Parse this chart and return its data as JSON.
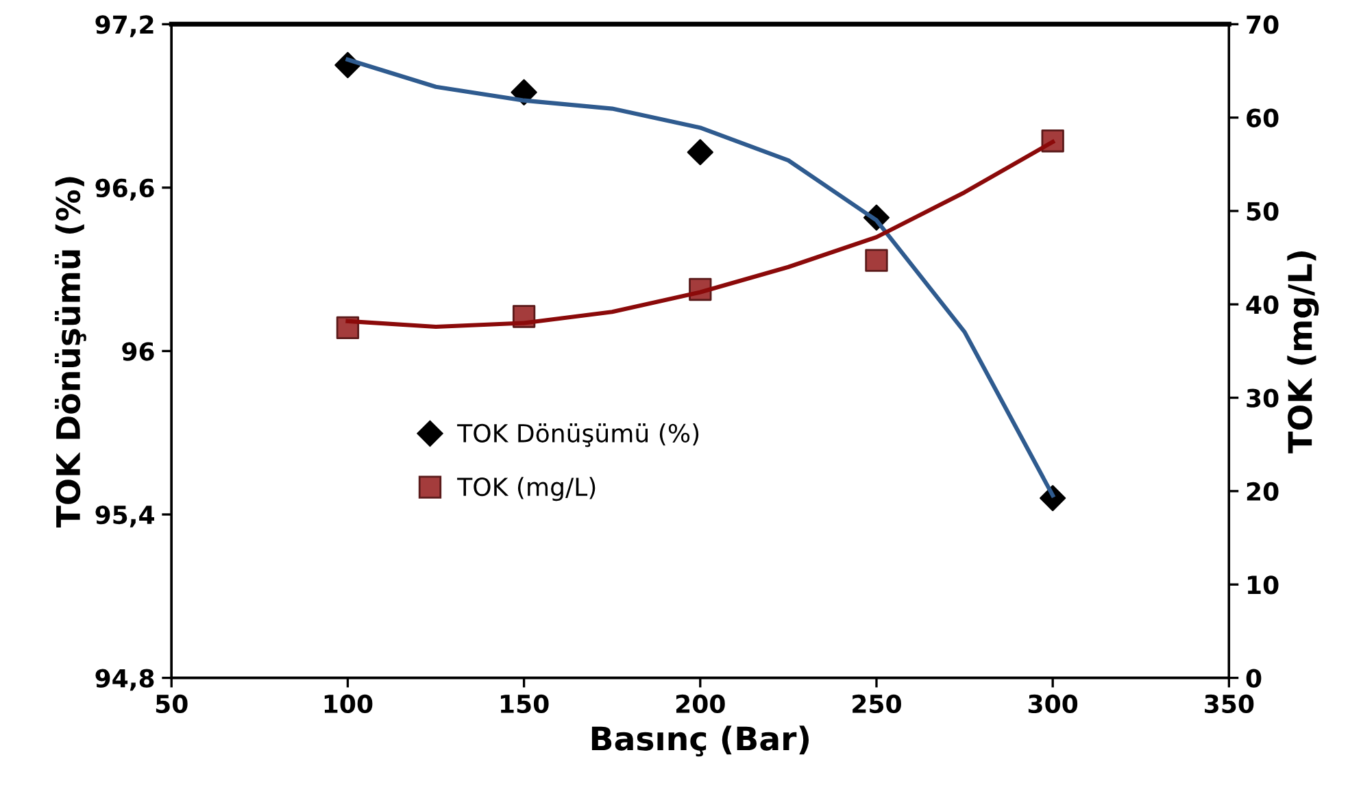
{
  "chart_data": {
    "type": "scatter",
    "xlabel": "Basınç (Bar)",
    "ylabel": "TOK Dönüşümü (%)",
    "y2label": "TOK (mg/L)",
    "xlim": [
      50,
      350
    ],
    "xticks": [
      50,
      100,
      150,
      200,
      250,
      300,
      350
    ],
    "ylim": [
      94.8,
      97.2
    ],
    "yticks": [
      {
        "value": 94.8,
        "label": "94,8"
      },
      {
        "value": 95.4,
        "label": "95,4"
      },
      96,
      {
        "value": 96.6,
        "label": "96,6"
      },
      {
        "value": 97.2,
        "label": "97,2"
      }
    ],
    "y2lim": [
      0,
      70
    ],
    "y2ticks": [
      0,
      10,
      20,
      30,
      40,
      50,
      60,
      70
    ],
    "grid": false,
    "legend": "center left",
    "series": [
      {
        "name": "TOK Dönüşümü (%)",
        "marker": "diamond",
        "color": "#000000",
        "x": [
          100,
          150,
          200,
          250,
          300
        ],
        "values": [
          97.05,
          96.95,
          96.73,
          96.49,
          95.46
        ]
      },
      {
        "name": "TOK (mg/L)",
        "marker": "square",
        "color": "#a43c3c",
        "axis": "y2",
        "x": [
          100,
          150,
          200,
          250,
          300
        ],
        "values": [
          37.5,
          38.7,
          41.6,
          44.7,
          57.5
        ]
      },
      {
        "type": "line",
        "color": "#2f5b8f",
        "x": [
          100,
          125,
          150,
          175,
          200,
          225,
          250,
          275,
          300
        ],
        "values": [
          97.07,
          96.97,
          96.92,
          96.89,
          96.82,
          96.7,
          96.48,
          96.07,
          95.47
        ]
      },
      {
        "type": "line",
        "color": "#8b0a0a",
        "axis": "y2",
        "x": [
          100,
          125,
          150,
          175,
          200,
          225,
          250,
          275,
          300
        ],
        "values": [
          38.2,
          37.6,
          38.0,
          39.2,
          41.3,
          44.0,
          47.2,
          52.0,
          57.4
        ]
      }
    ]
  }
}
